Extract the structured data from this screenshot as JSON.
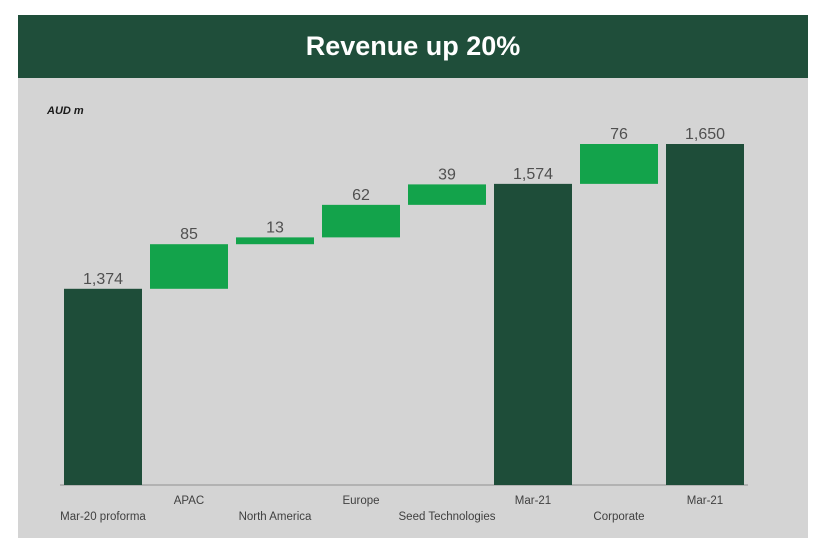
{
  "header": {
    "title": "Revenue up 20%"
  },
  "colors": {
    "header_bg": "#1f4e3a",
    "total_bar": "#1e4d39",
    "increase_bar": "#13a34b",
    "panel_bg": "#d4d4d4"
  },
  "chart_data": {
    "type": "waterfall",
    "title": "Revenue up 20%",
    "ylabel": "AUD m",
    "xlabel": "",
    "ylim": [
      1000,
      1700
    ],
    "grid": false,
    "legend": "none",
    "categories": [
      "Mar-20 proforma",
      "APAC",
      "North America",
      "Europe",
      "Seed Technologies",
      "Mar-21",
      "Corporate",
      "Mar-21"
    ],
    "values": [
      1374,
      85,
      13,
      62,
      39,
      1574,
      76,
      1650
    ],
    "kinds": [
      "total",
      "increase",
      "increase",
      "increase",
      "increase",
      "total",
      "increase",
      "total"
    ],
    "labels": [
      "1,374",
      "85",
      "13",
      "62",
      "39",
      "1,574",
      "76",
      "1,650"
    ]
  }
}
